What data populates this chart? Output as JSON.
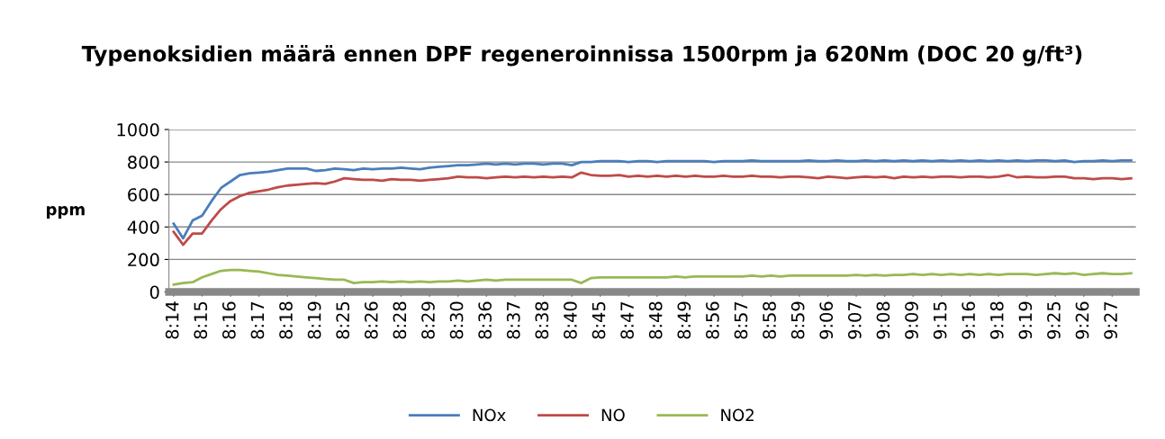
{
  "chart_data": {
    "type": "line",
    "title": "Typenoksidien määrä ennen DPF regeneroinnissa 1500rpm ja 620Nm (DOC 20 g/ft³)",
    "ylabel": "ppm",
    "categories": [
      "8:14",
      null,
      null,
      "8:15",
      null,
      null,
      "8:16",
      null,
      null,
      "8:17",
      null,
      null,
      "8:18",
      null,
      null,
      "8:19",
      null,
      null,
      "8:25",
      null,
      null,
      "8:26",
      null,
      null,
      "8:28",
      null,
      null,
      "8:29",
      null,
      null,
      "8:30",
      null,
      null,
      "8:36",
      null,
      null,
      "8:37",
      null,
      null,
      "8:38",
      null,
      null,
      "8:40",
      null,
      null,
      "8:45",
      null,
      null,
      "8:47",
      null,
      null,
      "8:48",
      null,
      null,
      "8:49",
      null,
      null,
      "8:56",
      null,
      null,
      "8:57",
      null,
      null,
      "8:58",
      null,
      null,
      "8:59",
      null,
      null,
      "9:06",
      null,
      null,
      "9:07",
      null,
      null,
      "9:08",
      null,
      null,
      "9:09",
      null,
      null,
      "9:15",
      null,
      null,
      "9:16",
      null,
      null,
      "9:18",
      null,
      null,
      "9:19",
      null,
      null,
      "9:25",
      null,
      null,
      "9:26",
      null,
      null,
      "9:27",
      null,
      null
    ],
    "series": [
      {
        "name": "NOx",
        "color": "#4a7ebb",
        "values": [
          420,
          330,
          440,
          470,
          560,
          640,
          680,
          720,
          730,
          735,
          740,
          750,
          760,
          760,
          760,
          745,
          750,
          760,
          755,
          750,
          760,
          755,
          760,
          760,
          765,
          760,
          755,
          765,
          770,
          775,
          780,
          780,
          785,
          790,
          785,
          790,
          785,
          790,
          790,
          785,
          790,
          790,
          780,
          800,
          800,
          805,
          805,
          805,
          800,
          805,
          805,
          800,
          805,
          805,
          805,
          805,
          805,
          800,
          805,
          805,
          805,
          810,
          805,
          805,
          805,
          805,
          805,
          810,
          805,
          805,
          810,
          805,
          805,
          810,
          805,
          810,
          805,
          810,
          805,
          810,
          805,
          810,
          805,
          810,
          805,
          810,
          805,
          810,
          805,
          810,
          805,
          810,
          810,
          805,
          810,
          800,
          805,
          805,
          810,
          805,
          810,
          810
        ]
      },
      {
        "name": "NO",
        "color": "#be4b48",
        "values": [
          370,
          290,
          360,
          360,
          440,
          510,
          560,
          590,
          610,
          620,
          630,
          645,
          655,
          660,
          665,
          670,
          665,
          680,
          700,
          695,
          690,
          690,
          685,
          695,
          690,
          690,
          685,
          690,
          695,
          700,
          710,
          705,
          705,
          700,
          705,
          710,
          705,
          710,
          705,
          710,
          705,
          710,
          705,
          735,
          720,
          715,
          715,
          720,
          710,
          715,
          710,
          715,
          710,
          715,
          710,
          715,
          710,
          710,
          715,
          710,
          710,
          715,
          710,
          710,
          705,
          710,
          710,
          705,
          700,
          710,
          705,
          700,
          705,
          710,
          705,
          710,
          700,
          710,
          705,
          710,
          705,
          710,
          710,
          705,
          710,
          710,
          705,
          710,
          720,
          705,
          710,
          705,
          705,
          710,
          710,
          700,
          700,
          695,
          700,
          700,
          695,
          700
        ]
      },
      {
        "name": "NO2",
        "color": "#98b954",
        "values": [
          45,
          55,
          60,
          90,
          110,
          130,
          135,
          135,
          130,
          125,
          115,
          105,
          100,
          95,
          90,
          85,
          80,
          75,
          75,
          55,
          60,
          60,
          65,
          60,
          65,
          60,
          65,
          60,
          65,
          65,
          70,
          65,
          70,
          75,
          70,
          75,
          75,
          75,
          75,
          75,
          75,
          75,
          75,
          55,
          85,
          90,
          90,
          90,
          90,
          90,
          90,
          90,
          90,
          95,
          90,
          95,
          95,
          95,
          95,
          95,
          95,
          100,
          95,
          100,
          95,
          100,
          100,
          100,
          100,
          100,
          100,
          100,
          105,
          100,
          105,
          100,
          105,
          105,
          110,
          105,
          110,
          105,
          110,
          105,
          110,
          105,
          110,
          105,
          110,
          110,
          110,
          105,
          110,
          115,
          110,
          115,
          105,
          110,
          115,
          110,
          110,
          115
        ]
      }
    ],
    "ylim": [
      0,
      1000
    ],
    "yticks": [
      0,
      200,
      400,
      600,
      800,
      1000
    ],
    "grid": "y",
    "legend": "bottom",
    "marker": "none",
    "line_style": "solid"
  }
}
